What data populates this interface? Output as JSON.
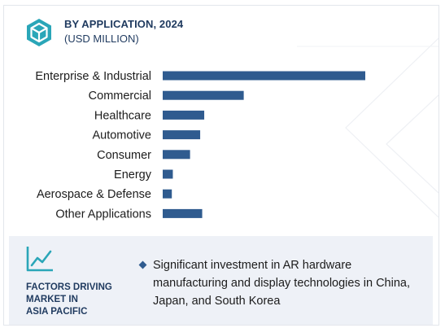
{
  "header": {
    "title": "BY APPLICATION, 2024",
    "subtitle": "(USD MILLION)",
    "logo_icon": "hexagon-cube-icon"
  },
  "colors": {
    "bar": "#2f5b8f",
    "accent": "#2aa6b8",
    "heading": "#1f3a5f",
    "footer_bg": "#eef1f7"
  },
  "chart_data": {
    "type": "bar",
    "orientation": "horizontal",
    "categories": [
      "Enterprise & Industrial",
      "Commercial",
      "Healthcare",
      "Automotive",
      "Consumer",
      "Energy",
      "Aerospace & Defense",
      "Other Applications"
    ],
    "values": [
      100,
      40,
      20.5,
      18.5,
      13.5,
      5,
      4.5,
      19.5
    ],
    "xlim": [
      0,
      100
    ],
    "grid": false,
    "legend": "none",
    "title": "BY APPLICATION, 2024",
    "xlabel": "",
    "ylabel": ""
  },
  "footer": {
    "icon": "trend-line-icon",
    "factors_title": [
      "FACTORS DRIVING",
      "MARKET IN",
      "ASIA PACIFIC"
    ],
    "bullet": "Significant investment in AR hardware manufacturing and display technologies in China, Japan, and South Korea"
  }
}
